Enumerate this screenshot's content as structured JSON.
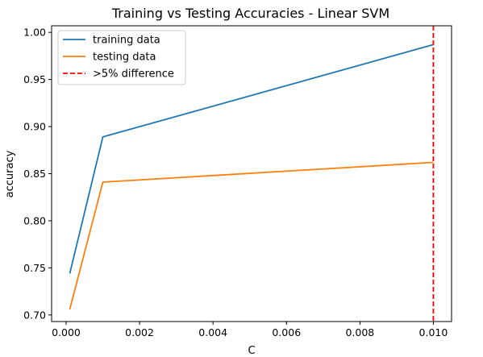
{
  "chart_data": {
    "type": "line",
    "title": "Training vs Testing Accuracies - Linear SVM",
    "xlabel": "C",
    "ylabel": "accuracy",
    "xlim": [
      -0.000395,
      0.010495
    ],
    "ylim": [
      0.693,
      1.007
    ],
    "x_ticks": [
      0.0,
      0.002,
      0.004,
      0.006,
      0.008,
      0.01
    ],
    "x_tick_labels": [
      "0.000",
      "0.002",
      "0.004",
      "0.006",
      "0.008",
      "0.010"
    ],
    "y_ticks": [
      0.7,
      0.75,
      0.8,
      0.85,
      0.9,
      0.95,
      1.0
    ],
    "y_tick_labels": [
      "0.70",
      "0.75",
      "0.80",
      "0.85",
      "0.90",
      "0.95",
      "1.00"
    ],
    "grid": false,
    "legend_position": "top-left",
    "series": [
      {
        "name": "training data",
        "color": "#1f77b4",
        "x": [
          0.0001,
          0.001,
          0.01
        ],
        "y": [
          0.744,
          0.889,
          0.987
        ]
      },
      {
        "name": "testing data",
        "color": "#ff7f0e",
        "x": [
          0.0001,
          0.001,
          0.01
        ],
        "y": [
          0.706,
          0.841,
          0.862
        ]
      }
    ],
    "vlines": [
      {
        "name": ">5% difference",
        "x": 0.01,
        "color": "#ff0000",
        "style": "dashed"
      }
    ]
  }
}
